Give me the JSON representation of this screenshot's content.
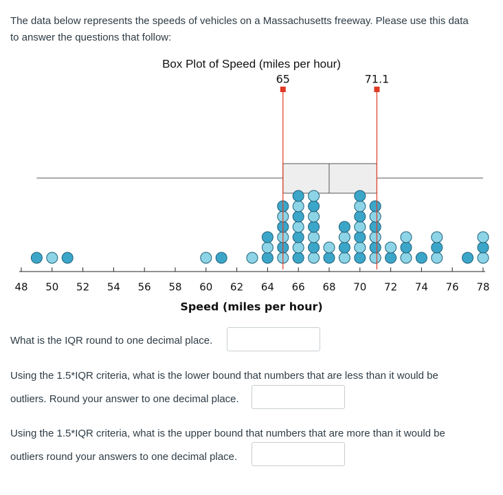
{
  "intro": [
    "The data below represents the speeds of vehicles on a Massachusetts freeway. Please use this data",
    "to answer the questions that follow:"
  ],
  "chart_data": {
    "type": "dotplot",
    "title": "Box Plot of Speed (miles per hour)",
    "x_label": "Speed (miles per hour)",
    "x": [
      49,
      50,
      51,
      60,
      61,
      63,
      64,
      65,
      66,
      67,
      68,
      69,
      70,
      71,
      72,
      73,
      74,
      75,
      77,
      78
    ],
    "counts": [
      1,
      1,
      1,
      1,
      1,
      1,
      3,
      6,
      7,
      7,
      2,
      4,
      7,
      6,
      2,
      3,
      1,
      3,
      1,
      3
    ],
    "colors": [
      "#3ca6c9",
      "#8dd4e6"
    ],
    "box": {
      "min": 49,
      "q1": 65,
      "median": 68,
      "q3": 71.1,
      "max": 78
    },
    "annotations": [
      65,
      71.1
    ],
    "annotation_color": "#e03a24",
    "xlim": [
      48,
      78
    ],
    "xticks": [
      48,
      50,
      52,
      54,
      56,
      58,
      60,
      62,
      64,
      66,
      68,
      70,
      72,
      74,
      76,
      78
    ]
  },
  "questions": [
    {
      "lines": [
        "What is the IQR round to one decimal place."
      ]
    },
    {
      "lines": [
        "Using the 1.5*IQR criteria, what is the lower bound that numbers that are less than it would be",
        "outliers. Round your answer to one decimal place."
      ]
    },
    {
      "lines": [
        "Using the 1.5*IQR criteria, what is the upper bound that numbers that are more than it would be",
        "outliers round your answers to one decimal place."
      ]
    }
  ]
}
